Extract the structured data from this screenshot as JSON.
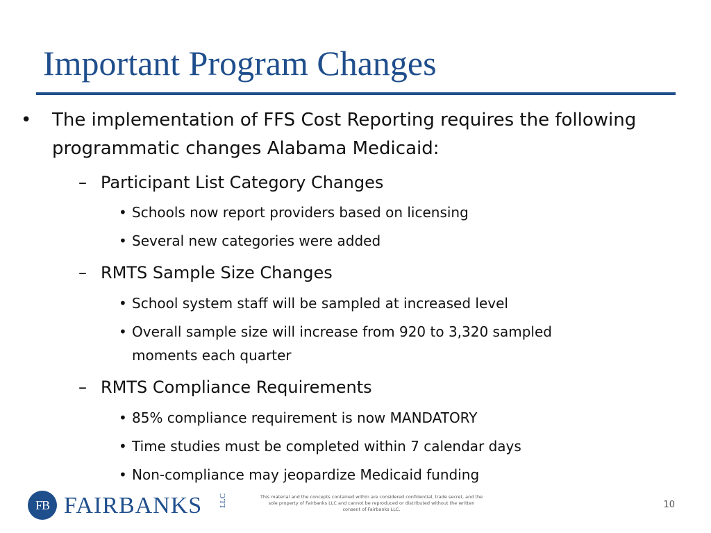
{
  "slide": {
    "title": "Important Program Changes",
    "page_number": "10"
  },
  "bullets": {
    "intro_line1": "The implementation of FFS Cost Reporting requires the following",
    "intro_line2": "programmatic changes Alabama Medicaid:",
    "participant_heading": "Participant List Category Changes",
    "participant_item1": "Schools now report providers based on licensing",
    "participant_item2": "Several new categories were added",
    "rmts_sample_heading": "RMTS Sample Size Changes",
    "rmts_sample_item1": "School system staff will be sampled at increased level",
    "rmts_sample_item2_line1": "Overall sample size will increase from 920 to 3,320 sampled",
    "rmts_sample_item2_line2": "moments each quarter",
    "rmts_compliance_heading": "RMTS Compliance Requirements",
    "rmts_compliance_item1": "85% compliance requirement is now MANDATORY",
    "rmts_compliance_item2": "Time studies must be completed within 7 calendar days",
    "rmts_compliance_item3": "Non-compliance may jeopardize Medicaid funding"
  },
  "markers": {
    "level1": "•",
    "level2": "–",
    "level3": "•"
  },
  "footer": {
    "logo_initials": "FB",
    "logo_name": "FAIRBANKS",
    "logo_suffix": "LLC",
    "disclaimer_line1": "This material and the concepts contained within are considered confidential, trade secret, and the",
    "disclaimer_line2": "sole property of Fairbanks LLC and cannot be reproduced or distributed without the written",
    "disclaimer_line3": "consent of Fairbanks LLC."
  },
  "colors": {
    "accent": "#1f4e8c",
    "text": "#111111"
  }
}
